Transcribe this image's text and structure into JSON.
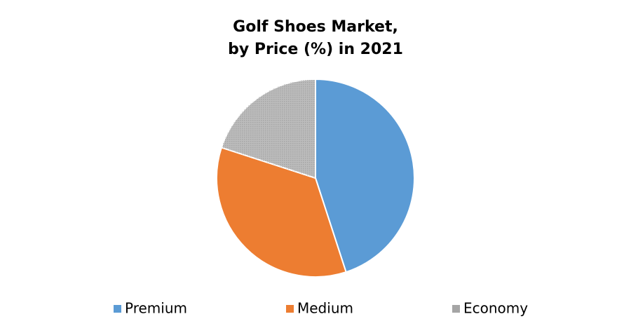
{
  "chart_data": {
    "type": "pie",
    "title": [
      "Golf Shoes Market,",
      "by Price (%) in 2021"
    ],
    "categories": [
      "Premium",
      "Medium",
      "Economy"
    ],
    "values": [
      45,
      35,
      20
    ],
    "colors": [
      "#5b9bd5",
      "#ed7d31",
      "#a5a5a5"
    ],
    "legend": "bottom"
  }
}
